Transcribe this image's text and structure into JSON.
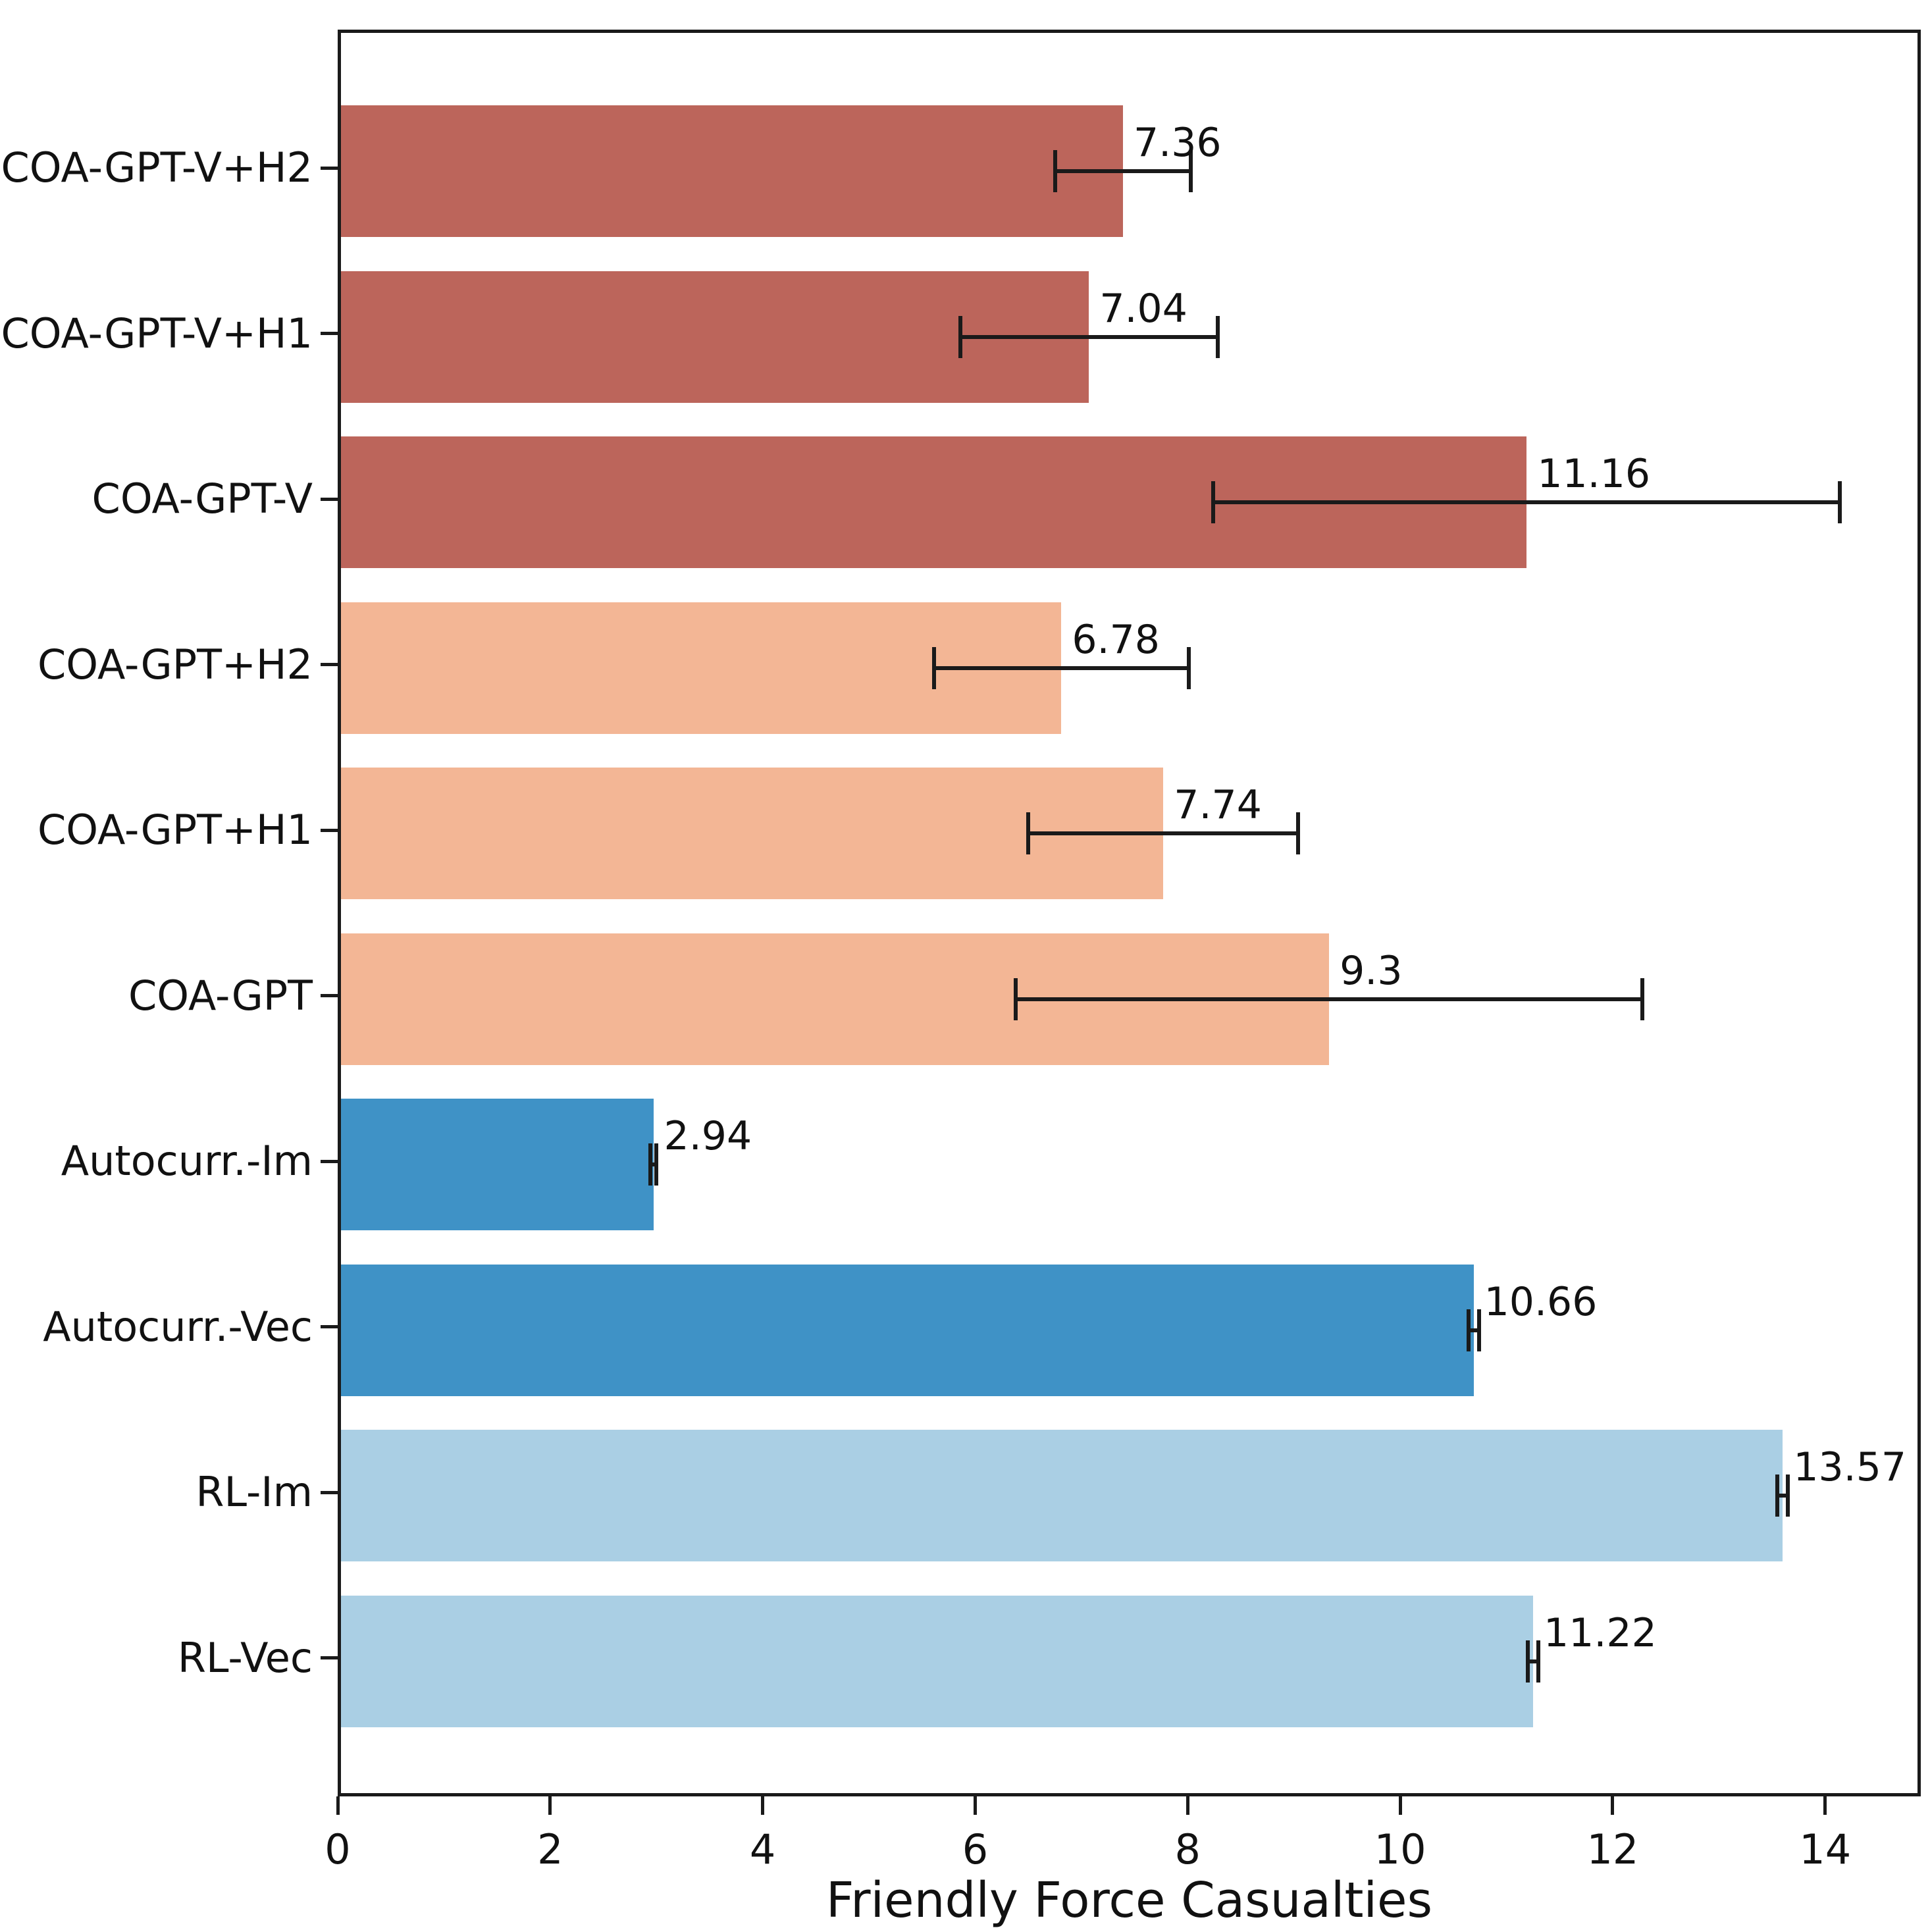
{
  "chart_data": {
    "type": "bar",
    "orientation": "horizontal",
    "title": "",
    "xlabel": "Friendly Force Casualties",
    "ylabel": "",
    "xlim": [
      0,
      14.9
    ],
    "x_ticks": [
      0,
      2,
      4,
      6,
      8,
      10,
      12,
      14
    ],
    "grid": false,
    "legend_position": "none",
    "background": "#ffffff",
    "axis_color": "#1a1a1a",
    "error_bar_color": "#1a1a1a",
    "text_color": "#111111",
    "categories_top_to_bottom": [
      "COA-GPT-V+H2",
      "COA-GPT-V+H1",
      "COA-GPT-V",
      "COA-GPT+H2",
      "COA-GPT+H1",
      "COA-GPT",
      "Autocurr.-Im",
      "Autocurr.-Vec",
      "RL-Im",
      "RL-Vec"
    ],
    "bars": [
      {
        "label": "COA-GPT-V+H2",
        "value": 7.36,
        "value_label": "7.36",
        "error": 0.64,
        "color": "#bc655b"
      },
      {
        "label": "COA-GPT-V+H1",
        "value": 7.04,
        "value_label": "7.04",
        "error": 1.21,
        "color": "#bc655b"
      },
      {
        "label": "COA-GPT-V",
        "value": 11.16,
        "value_label": "11.16",
        "error": 2.95,
        "color": "#bc655b"
      },
      {
        "label": "COA-GPT+H2",
        "value": 6.78,
        "value_label": "6.78",
        "error": 1.2,
        "color": "#f3b695"
      },
      {
        "label": "COA-GPT+H1",
        "value": 7.74,
        "value_label": "7.74",
        "error": 1.27,
        "color": "#f3b695"
      },
      {
        "label": "COA-GPT",
        "value": 9.3,
        "value_label": "9.3",
        "error": 2.95,
        "color": "#f3b695"
      },
      {
        "label": "Autocurr.-Im",
        "value": 2.94,
        "value_label": "2.94",
        "error": 0.03,
        "color": "#3f92c6"
      },
      {
        "label": "Autocurr.-Vec",
        "value": 10.66,
        "value_label": "10.66",
        "error": 0.05,
        "color": "#3f92c6"
      },
      {
        "label": "RL-Im",
        "value": 13.57,
        "value_label": "13.57",
        "error": 0.05,
        "color": "#aacfe4"
      },
      {
        "label": "RL-Vec",
        "value": 11.22,
        "value_label": "11.22",
        "error": 0.05,
        "color": "#aacfe4"
      }
    ]
  }
}
